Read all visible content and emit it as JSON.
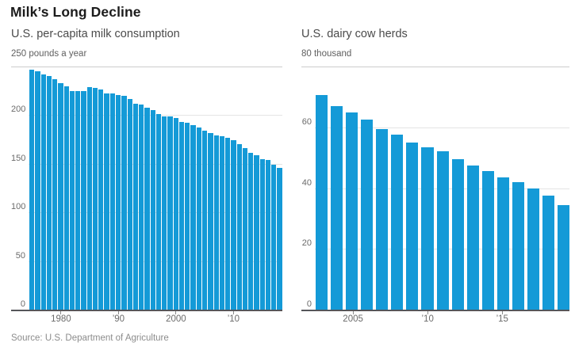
{
  "title": "Milk’s Long Decline",
  "source": "Source: U.S. Department of Agriculture",
  "colors": {
    "bar": "#149ad7",
    "grid": "#e4e4e4",
    "top_rule": "#cccccc",
    "axis": "#55565a",
    "tick": "#8a8a8a"
  },
  "chart_data": [
    {
      "type": "bar",
      "title": "U.S. per-capita milk consumption",
      "unit_label": "250 pounds a year",
      "ylabel": "pounds a year",
      "ylim": [
        0,
        250
      ],
      "yticks": [
        0,
        50,
        100,
        150,
        200,
        250
      ],
      "grid": "horizontal",
      "legend_position": "none",
      "xticks": [
        {
          "year": 1980,
          "label": "1980"
        },
        {
          "year": 1990,
          "label": "’90"
        },
        {
          "year": 2000,
          "label": "2000"
        },
        {
          "year": 2010,
          "label": "’10"
        }
      ],
      "categories": [
        1975,
        1976,
        1977,
        1978,
        1979,
        1980,
        1981,
        1982,
        1983,
        1984,
        1985,
        1986,
        1987,
        1988,
        1989,
        1990,
        1991,
        1992,
        1993,
        1994,
        1995,
        1996,
        1997,
        1998,
        1999,
        2000,
        2001,
        2002,
        2003,
        2004,
        2005,
        2006,
        2007,
        2008,
        2009,
        2010,
        2011,
        2012,
        2013,
        2014,
        2015,
        2016,
        2017,
        2018
      ],
      "values": [
        247,
        245,
        242,
        240,
        237,
        233,
        230,
        225,
        225,
        225,
        229,
        228,
        226,
        222,
        222,
        221,
        220,
        217,
        212,
        211,
        208,
        205,
        201,
        199,
        199,
        197,
        193,
        192,
        190,
        187,
        184,
        182,
        179,
        178,
        177,
        174,
        170,
        166,
        161,
        159,
        155,
        154,
        149,
        146
      ]
    },
    {
      "type": "bar",
      "title": "U.S. dairy cow herds",
      "unit_label": "80 thousand",
      "ylabel": "thousand",
      "ylim": [
        0,
        80
      ],
      "yticks": [
        0,
        20,
        40,
        60,
        80
      ],
      "grid": "horizontal",
      "legend_position": "none",
      "xticks": [
        {
          "year": 2005,
          "label": "2005"
        },
        {
          "year": 2010,
          "label": "’10"
        },
        {
          "year": 2015,
          "label": "’15"
        }
      ],
      "categories": [
        2003,
        2004,
        2005,
        2006,
        2007,
        2008,
        2009,
        2010,
        2011,
        2012,
        2013,
        2014,
        2015,
        2016,
        2017,
        2018,
        2019
      ],
      "values": [
        70.5,
        67,
        65,
        62.5,
        59.5,
        57.5,
        55,
        53.5,
        52,
        49.5,
        47.5,
        45.5,
        43.5,
        42,
        40,
        37.5,
        34.5
      ]
    }
  ]
}
